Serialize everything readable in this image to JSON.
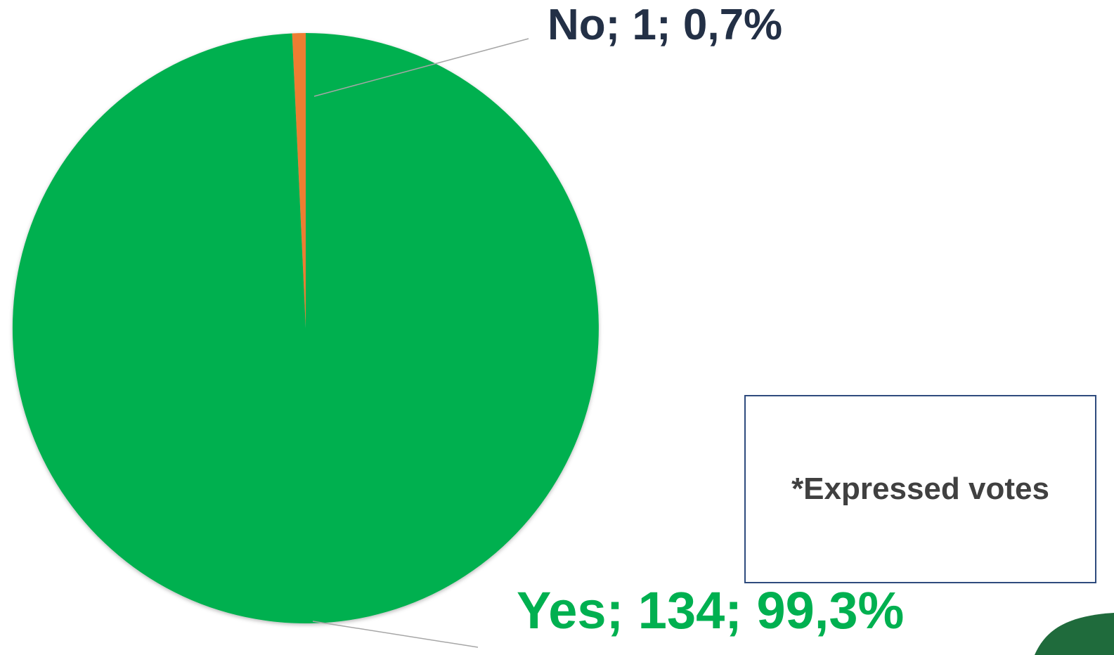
{
  "chart_data": {
    "type": "pie",
    "slices": [
      {
        "name": "No",
        "value": 1,
        "percent": 0.7,
        "color": "#ed7d31",
        "label": "No; 1; 0,7%"
      },
      {
        "name": "Yes",
        "value": 134,
        "percent": 99.3,
        "color": "#00b050",
        "label": "Yes; 134; 99,3%"
      }
    ],
    "legend": "none",
    "note": "*Expressed votes"
  },
  "colors": {
    "leader_line": "#a6a6a6",
    "decoration": "#1f6b3c"
  }
}
